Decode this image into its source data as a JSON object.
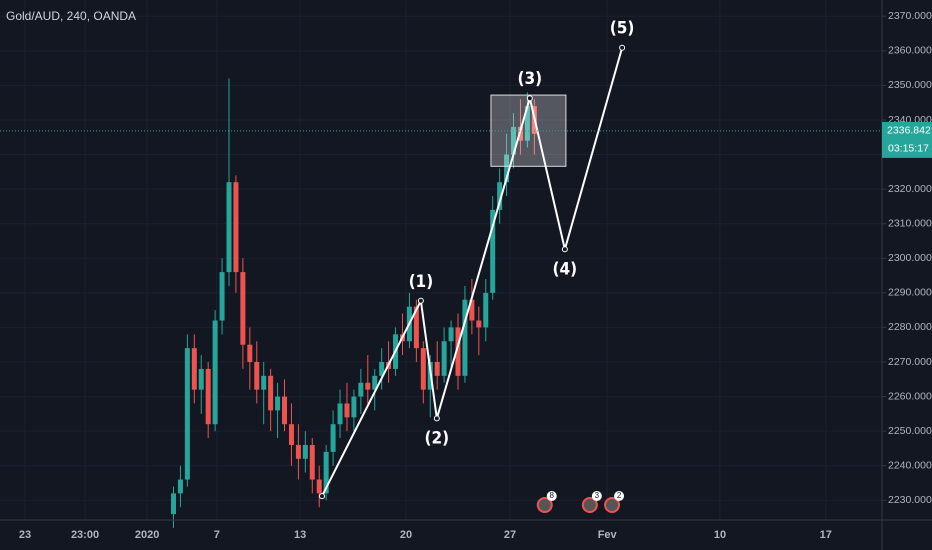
{
  "chart_data": {
    "type": "candlestick",
    "title": "Gold/AUD, 240, OANDA",
    "up_color": "#26a69a",
    "down_color": "#ef5350",
    "x": [
      50,
      52,
      54,
      56,
      58,
      60,
      62,
      64,
      66,
      68,
      70,
      72,
      74,
      76,
      78,
      80,
      82,
      84,
      86,
      88,
      90,
      92,
      94,
      96,
      98,
      100,
      102,
      104,
      106,
      108,
      110,
      112,
      114,
      116,
      118,
      120,
      122,
      124,
      126,
      128,
      130,
      132,
      134,
      136,
      138,
      140,
      142,
      144,
      146,
      148,
      150,
      152,
      154
    ],
    "open": [
      2226,
      2232,
      2236,
      2274,
      2262,
      2268,
      2252,
      2282,
      2296,
      2322,
      2296,
      2275,
      2270,
      2262,
      2266,
      2256,
      2260,
      2252,
      2246,
      2242,
      2246,
      2236,
      2232,
      2244,
      2252,
      2258,
      2254,
      2260,
      2264,
      2262,
      2266,
      2270,
      2268,
      2278,
      2276,
      2286,
      2274,
      2262,
      2270,
      2266,
      2276,
      2280,
      2266,
      2288,
      2282,
      2280,
      2290,
      2314,
      2322,
      2330,
      2338,
      2334,
      2344
    ],
    "high": [
      2234,
      2240,
      2278,
      2278,
      2272,
      2270,
      2285,
      2300,
      2352,
      2324,
      2300,
      2280,
      2276,
      2270,
      2268,
      2264,
      2265,
      2258,
      2252,
      2250,
      2248,
      2240,
      2246,
      2256,
      2262,
      2264,
      2262,
      2268,
      2272,
      2268,
      2274,
      2276,
      2280,
      2284,
      2290,
      2288,
      2276,
      2272,
      2276,
      2280,
      2282,
      2284,
      2292,
      2294,
      2286,
      2294,
      2318,
      2326,
      2336,
      2342,
      2346,
      2348,
      2346
    ],
    "low": [
      2222,
      2228,
      2234,
      2258,
      2255,
      2248,
      2250,
      2278,
      2292,
      2290,
      2268,
      2262,
      2258,
      2252,
      2250,
      2248,
      2250,
      2240,
      2236,
      2238,
      2232,
      2228,
      2230,
      2240,
      2248,
      2250,
      2250,
      2255,
      2258,
      2256,
      2262,
      2264,
      2266,
      2272,
      2274,
      2270,
      2258,
      2254,
      2262,
      2264,
      2268,
      2262,
      2264,
      2278,
      2272,
      2276,
      2288,
      2310,
      2318,
      2326,
      2330,
      2332,
      2330
    ],
    "close": [
      2232,
      2236,
      2274,
      2262,
      2268,
      2252,
      2282,
      2296,
      2322,
      2296,
      2275,
      2270,
      2262,
      2266,
      2256,
      2260,
      2252,
      2246,
      2242,
      2246,
      2236,
      2232,
      2244,
      2252,
      2258,
      2254,
      2260,
      2264,
      2262,
      2266,
      2270,
      2268,
      2278,
      2276,
      2286,
      2274,
      2262,
      2270,
      2266,
      2276,
      2280,
      2266,
      2288,
      2282,
      2280,
      2290,
      2314,
      2322,
      2330,
      2338,
      2334,
      2344,
      2336
    ],
    "xlim": [
      0,
      254.2
    ],
    "xticks": [
      {
        "value": 7.2,
        "label": "23"
      },
      {
        "value": 24.5,
        "label": "23:00"
      },
      {
        "value": 42.4,
        "label": "2020"
      },
      {
        "value": 62.5,
        "label": "7"
      },
      {
        "value": 86.5,
        "label": "13"
      },
      {
        "value": 117,
        "label": "20"
      },
      {
        "value": 147,
        "label": "27"
      },
      {
        "value": 175,
        "label": "Fev"
      },
      {
        "value": 207.5,
        "label": "10"
      },
      {
        "value": 238,
        "label": "17"
      }
    ],
    "ylim": [
      2224.3,
      2374.7
    ],
    "yticks": [
      {
        "value": 2230,
        "label": "2230.000"
      },
      {
        "value": 2240,
        "label": "2240.000"
      },
      {
        "value": 2250,
        "label": "2250.000"
      },
      {
        "value": 2260,
        "label": "2260.000"
      },
      {
        "value": 2270,
        "label": "2270.000"
      },
      {
        "value": 2280,
        "label": "2280.000"
      },
      {
        "value": 2290,
        "label": "2290.000"
      },
      {
        "value": 2300,
        "label": "2300.000"
      },
      {
        "value": 2310,
        "label": "2310.000"
      },
      {
        "value": 2320,
        "label": "2320.000"
      },
      {
        "value": 2330,
        "label": "2330.000"
      },
      {
        "value": 2340,
        "label": "2340.000"
      },
      {
        "value": 2350,
        "label": "2350.000"
      },
      {
        "value": 2360,
        "label": "2360.000"
      },
      {
        "value": 2370,
        "label": "2370.000"
      }
    ],
    "grid": true,
    "current_price": 2336.842,
    "countdown": "03:15:17",
    "wave": {
      "start": {
        "x": 92.8,
        "y": 2231.2
      },
      "points": [
        {
          "label": "(1)",
          "x": 121.3,
          "y": 2287.7
        },
        {
          "label": "(2)",
          "x": 125.9,
          "y": 2253.7
        },
        {
          "label": "(3)",
          "x": 152.7,
          "y": 2346.3
        },
        {
          "label": "(4)",
          "x": 162.8,
          "y": 2302.6
        },
        {
          "label": "(5)",
          "x": 179.3,
          "y": 2360.9
        }
      ]
    },
    "box": {
      "x": [
        141.5,
        163.1
      ],
      "y": [
        2326.6,
        2347.2
      ]
    },
    "events": [
      {
        "x": 157,
        "count": 8
      },
      {
        "x": 170,
        "count": 3
      },
      {
        "x": 176.4,
        "count": 2
      }
    ]
  }
}
